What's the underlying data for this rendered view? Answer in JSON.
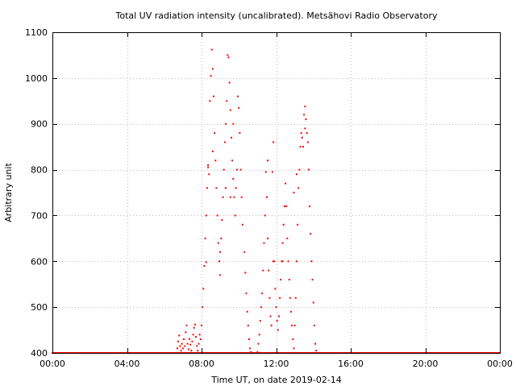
{
  "chart_data": {
    "type": "scatter",
    "title": "Total UV radiation intensity (uncalibrated). Metsähovi Radio Observatory",
    "xlabel": "Time UT, on date 2019-02-14",
    "ylabel": "Arbitrary unit",
    "xlim": [
      0,
      24
    ],
    "ylim": [
      400,
      1100
    ],
    "x_ticks": [
      {
        "value": 0,
        "label": "00:00"
      },
      {
        "value": 4,
        "label": "04:00"
      },
      {
        "value": 8,
        "label": "08:00"
      },
      {
        "value": 12,
        "label": "12:00"
      },
      {
        "value": 16,
        "label": "16:00"
      },
      {
        "value": 20,
        "label": "20:00"
      },
      {
        "value": 24,
        "label": "00:00"
      }
    ],
    "y_ticks": [
      {
        "value": 400,
        "label": "400"
      },
      {
        "value": 500,
        "label": "500"
      },
      {
        "value": 600,
        "label": "600"
      },
      {
        "value": 700,
        "label": "700"
      },
      {
        "value": 800,
        "label": "800"
      },
      {
        "value": 900,
        "label": "900"
      },
      {
        "value": 1000,
        "label": "1000"
      },
      {
        "value": 1100,
        "label": "1100"
      }
    ],
    "grid": true,
    "series_color": "#ff0000",
    "series": [
      {
        "points": [
          [
            6.7,
            410
          ],
          [
            6.75,
            425
          ],
          [
            6.8,
            438
          ],
          [
            6.85,
            415
          ],
          [
            6.9,
            405
          ],
          [
            6.95,
            420
          ],
          [
            7.0,
            410
          ],
          [
            7.05,
            430
          ],
          [
            7.1,
            415
          ],
          [
            7.15,
            445
          ],
          [
            7.2,
            460
          ],
          [
            7.25,
            420
          ],
          [
            7.3,
            408
          ],
          [
            7.35,
            430
          ],
          [
            7.4,
            418
          ],
          [
            7.45,
            405
          ],
          [
            7.5,
            425
          ],
          [
            7.55,
            440
          ],
          [
            7.6,
            455
          ],
          [
            7.65,
            462
          ],
          [
            7.7,
            435
          ],
          [
            7.75,
            415
          ],
          [
            7.8,
            405
          ],
          [
            7.85,
            420
          ],
          [
            7.9,
            440
          ],
          [
            7.95,
            430
          ],
          [
            8.0,
            460
          ],
          [
            8.05,
            500
          ],
          [
            8.1,
            540
          ],
          [
            8.15,
            590
          ],
          [
            8.2,
            650
          ],
          [
            8.25,
            700
          ],
          [
            8.3,
            760
          ],
          [
            8.35,
            805
          ],
          [
            8.4,
            790
          ],
          [
            8.45,
            950
          ],
          [
            8.5,
            1005
          ],
          [
            8.55,
            1062
          ],
          [
            8.6,
            1020
          ],
          [
            8.65,
            960
          ],
          [
            8.7,
            880
          ],
          [
            8.75,
            820
          ],
          [
            8.8,
            760
          ],
          [
            8.85,
            700
          ],
          [
            8.9,
            640
          ],
          [
            8.95,
            600
          ],
          [
            9.0,
            570
          ],
          [
            9.05,
            650
          ],
          [
            9.1,
            690
          ],
          [
            9.15,
            740
          ],
          [
            9.2,
            800
          ],
          [
            9.25,
            860
          ],
          [
            9.3,
            900
          ],
          [
            9.35,
            950
          ],
          [
            9.4,
            1050
          ],
          [
            9.45,
            1045
          ],
          [
            9.5,
            990
          ],
          [
            9.55,
            930
          ],
          [
            9.6,
            870
          ],
          [
            9.65,
            820
          ],
          [
            9.7,
            780
          ],
          [
            9.75,
            740
          ],
          [
            9.8,
            700
          ],
          [
            9.85,
            760
          ],
          [
            9.9,
            800
          ],
          [
            9.95,
            960
          ],
          [
            10.0,
            935
          ],
          [
            10.05,
            880
          ],
          [
            10.1,
            800
          ],
          [
            10.15,
            740
          ],
          [
            10.2,
            680
          ],
          [
            10.3,
            620
          ],
          [
            10.35,
            575
          ],
          [
            10.4,
            530
          ],
          [
            10.45,
            490
          ],
          [
            10.5,
            460
          ],
          [
            10.55,
            430
          ],
          [
            10.6,
            410
          ],
          [
            10.65,
            402
          ],
          [
            10.7,
            400
          ],
          [
            10.8,
            400
          ],
          [
            10.9,
            400
          ],
          [
            11.0,
            402
          ],
          [
            11.05,
            420
          ],
          [
            11.1,
            440
          ],
          [
            11.15,
            470
          ],
          [
            11.2,
            500
          ],
          [
            11.25,
            530
          ],
          [
            11.3,
            580
          ],
          [
            11.35,
            640
          ],
          [
            11.4,
            700
          ],
          [
            11.45,
            795
          ],
          [
            11.5,
            740
          ],
          [
            11.55,
            650
          ],
          [
            11.6,
            580
          ],
          [
            11.65,
            520
          ],
          [
            11.7,
            480
          ],
          [
            11.75,
            460
          ],
          [
            11.8,
            795
          ],
          [
            11.85,
            860
          ],
          [
            11.9,
            600
          ],
          [
            11.95,
            540
          ],
          [
            12.0,
            500
          ],
          [
            12.05,
            470
          ],
          [
            12.1,
            450
          ],
          [
            12.15,
            480
          ],
          [
            12.2,
            520
          ],
          [
            12.25,
            560
          ],
          [
            12.3,
            600
          ],
          [
            12.35,
            640
          ],
          [
            12.4,
            680
          ],
          [
            12.45,
            720
          ],
          [
            12.5,
            770
          ],
          [
            12.55,
            720
          ],
          [
            12.6,
            650
          ],
          [
            12.65,
            600
          ],
          [
            12.7,
            560
          ],
          [
            12.75,
            520
          ],
          [
            12.8,
            490
          ],
          [
            12.85,
            460
          ],
          [
            12.9,
            430
          ],
          [
            12.95,
            410
          ],
          [
            13.0,
            460
          ],
          [
            13.05,
            520
          ],
          [
            13.1,
            600
          ],
          [
            13.15,
            680
          ],
          [
            13.2,
            760
          ],
          [
            13.25,
            800
          ],
          [
            13.3,
            850
          ],
          [
            13.35,
            880
          ],
          [
            13.4,
            870
          ],
          [
            13.45,
            850
          ],
          [
            13.5,
            920
          ],
          [
            13.55,
            938
          ],
          [
            13.6,
            910
          ],
          [
            13.65,
            880
          ],
          [
            13.7,
            860
          ],
          [
            13.75,
            800
          ],
          [
            13.8,
            720
          ],
          [
            13.85,
            660
          ],
          [
            13.9,
            600
          ],
          [
            13.95,
            560
          ],
          [
            14.0,
            510
          ],
          [
            14.05,
            460
          ],
          [
            14.1,
            420
          ],
          [
            14.15,
            405
          ],
          [
            14.2,
            400
          ],
          [
            8.25,
            598
          ],
          [
            8.35,
            810
          ],
          [
            8.6,
            840
          ],
          [
            9.0,
            620
          ],
          [
            9.3,
            760
          ],
          [
            9.7,
            900
          ],
          [
            9.55,
            740
          ],
          [
            11.55,
            820
          ],
          [
            11.85,
            600
          ],
          [
            12.35,
            600
          ],
          [
            12.95,
            750
          ],
          [
            13.1,
            790
          ],
          [
            13.55,
            890
          ]
        ],
        "baseline": {
          "from": 0,
          "to": 24,
          "value": 400
        }
      }
    ]
  }
}
